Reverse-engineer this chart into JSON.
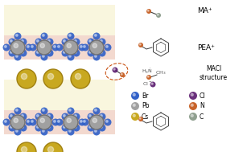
{
  "bg_color": "#ffffff",
  "title": "",
  "perovskite": {
    "layers": 2,
    "octahedra_color": "#e8b4a0",
    "octahedra_alpha": 0.7,
    "yellowish_layer_color": "#f5f0c8",
    "yellowish_layer_alpha": 0.5,
    "Cs_color": "#c8a820",
    "Pb_color": "#a0a0a0",
    "Br_color": "#3060c8",
    "MACl_color": "#8b1a1a"
  },
  "labels": {
    "MA_plus": "MA⁺",
    "PEA_plus": "PEA⁺",
    "MACl": "MACl\nstructure",
    "Br": "Br",
    "Pb": "Pb",
    "Cs": "Cs",
    "Cl": "Cl",
    "N": "N",
    "C": "C"
  },
  "legend_colors": {
    "Br": "#3060c8",
    "Pb": "#a0a0a0",
    "Cs": "#c8a820",
    "Cl": "#5a1a6e",
    "N": "#c8642a",
    "C": "#90a090"
  }
}
